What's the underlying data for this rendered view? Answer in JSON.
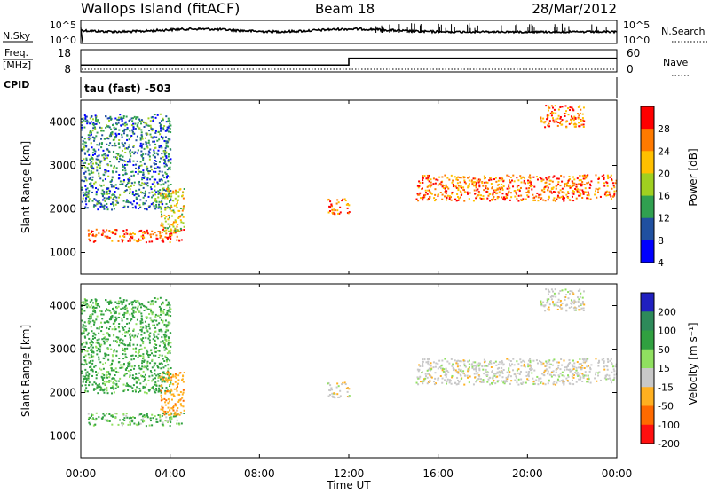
{
  "header": {
    "title": "Wallops Island (fitACF)",
    "beam": "Beam 18",
    "date": "28/Mar/2012"
  },
  "time_axis": {
    "xlabel": "Time UT",
    "ticks": [
      "00:00",
      "04:00",
      "08:00",
      "12:00",
      "16:00",
      "20:00",
      "00:00"
    ]
  },
  "noise_panel": {
    "left_label": "N.Sky",
    "right_label": "N.Search",
    "left_ticks": [
      "10^5",
      "10^0"
    ],
    "right_ticks": [
      "10^5",
      "10^0"
    ]
  },
  "freq_panel": {
    "left_label_top": "Freq.",
    "left_label_bottom": "[MHz]",
    "right_label": "Nave",
    "left_ticks": [
      "18",
      "8"
    ],
    "right_ticks": [
      "60",
      "0"
    ]
  },
  "cpid_panel": {
    "label": "CPID",
    "value": "tau (fast) -503"
  },
  "power_panel": {
    "ylabel": "Slant Range [km]",
    "colorbar_label": "Power [dB]",
    "colorbar_ticks": [
      "28",
      "24",
      "20",
      "16",
      "12",
      "8",
      "4"
    ],
    "colorbar_colors": [
      "#ff0000",
      "#ff7a00",
      "#ffc000",
      "#a0d020",
      "#30a050",
      "#2050a0",
      "#0000ff"
    ]
  },
  "velocity_panel": {
    "ylabel": "Slant Range [km]",
    "colorbar_label": "Velocity [m s⁻¹]",
    "colorbar_ticks": [
      "200",
      "100",
      "50",
      "15",
      "-15",
      "-50",
      "-100",
      "-200"
    ],
    "colorbar_colors": [
      "#2020c0",
      "#2d8a5a",
      "#30a040",
      "#90e060",
      "#c8c8c8",
      "#ffb020",
      "#ff6a00",
      "#ff1010"
    ]
  },
  "chart_data": {
    "type": "heatmap",
    "x_range_hours": [
      0,
      24
    ],
    "y_range_km": [
      500,
      4500
    ],
    "y_ticks": [
      1000,
      2000,
      3000,
      4000
    ],
    "frequency_mhz": [
      {
        "from_hour": 0,
        "to_hour": 12,
        "value": 10.5
      },
      {
        "from_hour": 12,
        "to_hour": 24,
        "value": 14.5
      }
    ],
    "scatter_regions": [
      {
        "from_hour": 0.3,
        "to_hour": 4.6,
        "range_km": [
          1250,
          1550
        ],
        "power_db": 26,
        "velocity": 30
      },
      {
        "from_hour": 0,
        "to_hour": 4.0,
        "range_km": [
          2000,
          4200
        ],
        "power_db": 10,
        "velocity": 40
      },
      {
        "from_hour": 3.5,
        "to_hour": 4.6,
        "range_km": [
          1500,
          2500
        ],
        "power_db": 18,
        "velocity": -40
      },
      {
        "from_hour": 11.0,
        "to_hour": 12.0,
        "range_km": [
          1900,
          2250
        ],
        "power_db": 25,
        "velocity": 0
      },
      {
        "from_hour": 15.0,
        "to_hour": 24.0,
        "range_km": [
          2200,
          2800
        ],
        "power_db": 24,
        "velocity": 0
      },
      {
        "from_hour": 20.5,
        "to_hour": 22.5,
        "range_km": [
          3900,
          4400
        ],
        "power_db": 24,
        "velocity": 0
      }
    ]
  }
}
